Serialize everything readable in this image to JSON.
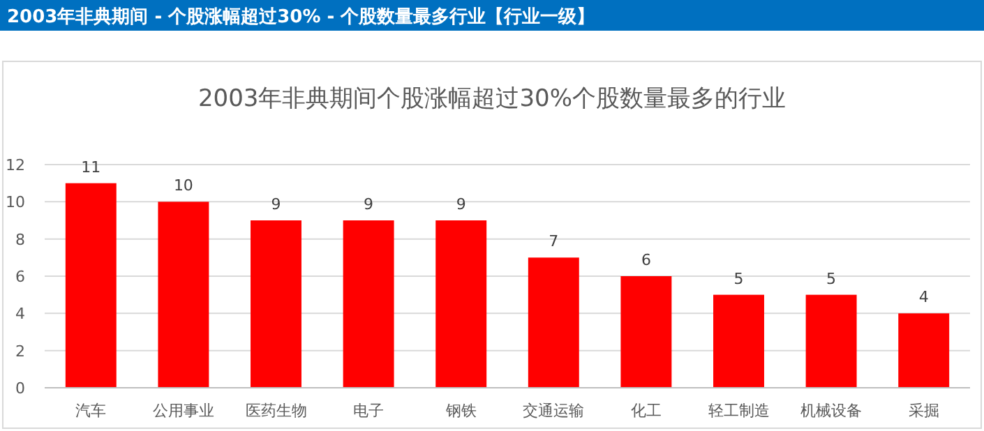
{
  "chart_data": {
    "type": "bar",
    "title": "2003年非典期间 - 个股涨幅超过30% - 个股数量最多行业【行业一级】",
    "subtitle": "2003年非典期间个股涨幅超过30%个股数量最多的行业",
    "categories": [
      "汽车",
      "公用事业",
      "医药生物",
      "电子",
      "钢铁",
      "交通运输",
      "化工",
      "轻工制造",
      "机械设备",
      "采掘"
    ],
    "values": [
      11,
      10,
      9,
      9,
      9,
      7,
      6,
      5,
      5,
      4
    ],
    "color": "#ff0000",
    "ylim": [
      0,
      12
    ],
    "yticks": [
      0,
      2,
      4,
      6,
      8,
      10,
      12
    ],
    "grid": "y",
    "data_labels": true
  }
}
